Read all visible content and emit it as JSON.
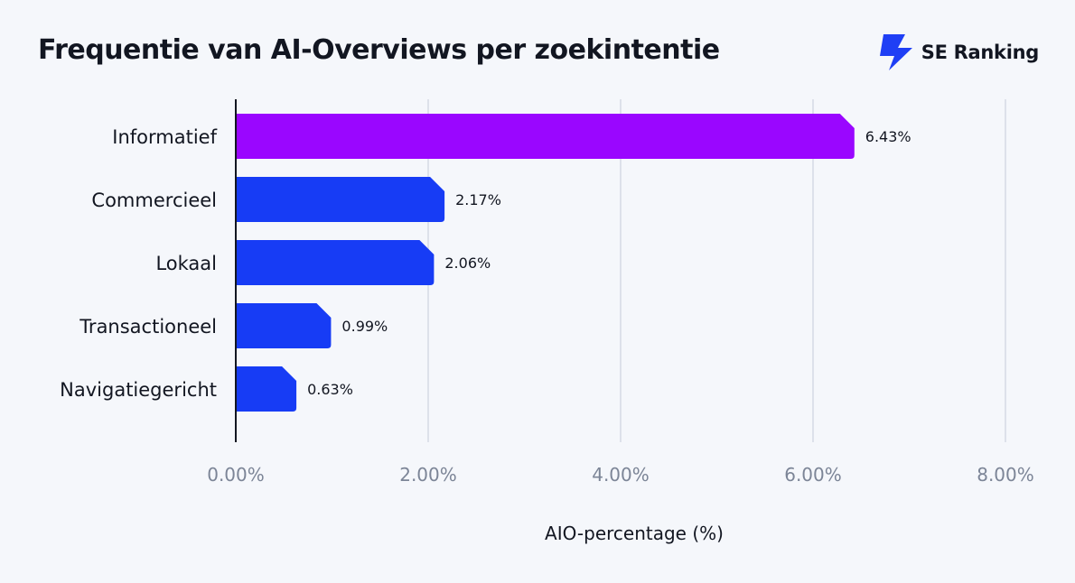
{
  "brand": {
    "name": "SE Ranking",
    "logo_icon": "bolt-logo-icon",
    "logo_color": "#1f3ff5"
  },
  "chart_data": {
    "type": "bar",
    "orientation": "horizontal",
    "title": "Frequentie van AI-Overviews per zoekintentie",
    "xlabel": "AIO-percentage (%)",
    "ylabel": "",
    "categories": [
      "Informatief",
      "Commercieel",
      "Lokaal",
      "Transactioneel",
      "Navigatiegericht"
    ],
    "values": [
      6.43,
      2.17,
      2.06,
      0.99,
      0.63
    ],
    "value_labels": [
      "6.43%",
      "2.17%",
      "2.06%",
      "0.99%",
      "0.63%"
    ],
    "bar_colors": [
      "#9a06ff",
      "#173cf5",
      "#173cf5",
      "#173cf5",
      "#173cf5"
    ],
    "xlim": [
      0,
      8
    ],
    "x_ticks": [
      0,
      2,
      4,
      6,
      8
    ],
    "x_tick_labels": [
      "0.00%",
      "2.00%",
      "4.00%",
      "6.00%",
      "8.00%"
    ],
    "grid": true,
    "legend": "none"
  }
}
